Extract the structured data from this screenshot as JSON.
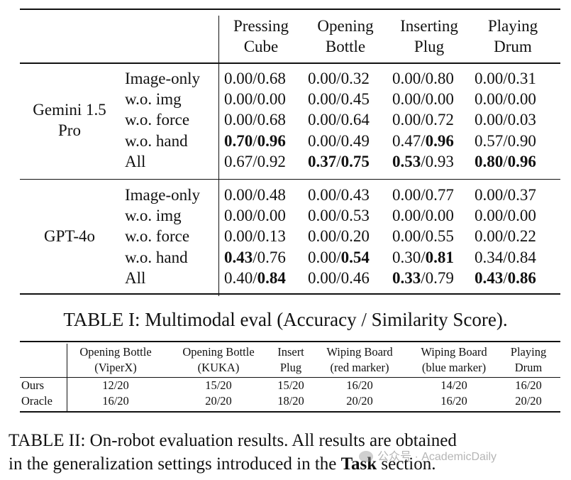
{
  "table1": {
    "headers": [
      {
        "line1": "Pressing",
        "line2": "Cube"
      },
      {
        "line1": "Opening",
        "line2": "Bottle"
      },
      {
        "line1": "Inserting",
        "line2": "Plug"
      },
      {
        "line1": "Playing",
        "line2": "Drum"
      }
    ],
    "groups": [
      {
        "model_line1": "Gemini 1.5",
        "model_line2": "Pro",
        "rows": [
          {
            "variant": "Image-only",
            "cells": [
              {
                "acc": "0.00",
                "sim": "0.68",
                "acc_bold": false,
                "sim_bold": false
              },
              {
                "acc": "0.00",
                "sim": "0.32",
                "acc_bold": false,
                "sim_bold": false
              },
              {
                "acc": "0.00",
                "sim": "0.80",
                "acc_bold": false,
                "sim_bold": false
              },
              {
                "acc": "0.00",
                "sim": "0.31",
                "acc_bold": false,
                "sim_bold": false
              }
            ]
          },
          {
            "variant": "w.o. img",
            "cells": [
              {
                "acc": "0.00",
                "sim": "0.00",
                "acc_bold": false,
                "sim_bold": false
              },
              {
                "acc": "0.00",
                "sim": "0.45",
                "acc_bold": false,
                "sim_bold": false
              },
              {
                "acc": "0.00",
                "sim": "0.00",
                "acc_bold": false,
                "sim_bold": false
              },
              {
                "acc": "0.00",
                "sim": "0.00",
                "acc_bold": false,
                "sim_bold": false
              }
            ]
          },
          {
            "variant": "w.o. force",
            "cells": [
              {
                "acc": "0.00",
                "sim": "0.68",
                "acc_bold": false,
                "sim_bold": false
              },
              {
                "acc": "0.00",
                "sim": "0.64",
                "acc_bold": false,
                "sim_bold": false
              },
              {
                "acc": "0.00",
                "sim": "0.72",
                "acc_bold": false,
                "sim_bold": false
              },
              {
                "acc": "0.00",
                "sim": "0.03",
                "acc_bold": false,
                "sim_bold": false
              }
            ]
          },
          {
            "variant": "w.o. hand",
            "cells": [
              {
                "acc": "0.70",
                "sim": "0.96",
                "acc_bold": true,
                "sim_bold": true
              },
              {
                "acc": "0.00",
                "sim": "0.49",
                "acc_bold": false,
                "sim_bold": false
              },
              {
                "acc": "0.47",
                "sim": "0.96",
                "acc_bold": false,
                "sim_bold": true
              },
              {
                "acc": "0.57",
                "sim": "0.90",
                "acc_bold": false,
                "sim_bold": false
              }
            ]
          },
          {
            "variant": "All",
            "cells": [
              {
                "acc": "0.67",
                "sim": "0.92",
                "acc_bold": false,
                "sim_bold": false
              },
              {
                "acc": "0.37",
                "sim": "0.75",
                "acc_bold": true,
                "sim_bold": true
              },
              {
                "acc": "0.53",
                "sim": "0.93",
                "acc_bold": true,
                "sim_bold": false
              },
              {
                "acc": "0.80",
                "sim": "0.96",
                "acc_bold": true,
                "sim_bold": true
              }
            ]
          }
        ]
      },
      {
        "model_line1": "GPT-4o",
        "model_line2": "",
        "rows": [
          {
            "variant": "Image-only",
            "cells": [
              {
                "acc": "0.00",
                "sim": "0.48",
                "acc_bold": false,
                "sim_bold": false
              },
              {
                "acc": "0.00",
                "sim": "0.43",
                "acc_bold": false,
                "sim_bold": false
              },
              {
                "acc": "0.00",
                "sim": "0.77",
                "acc_bold": false,
                "sim_bold": false
              },
              {
                "acc": "0.00",
                "sim": "0.37",
                "acc_bold": false,
                "sim_bold": false
              }
            ]
          },
          {
            "variant": "w.o. img",
            "cells": [
              {
                "acc": "0.00",
                "sim": "0.00",
                "acc_bold": false,
                "sim_bold": false
              },
              {
                "acc": "0.00",
                "sim": "0.53",
                "acc_bold": false,
                "sim_bold": false
              },
              {
                "acc": "0.00",
                "sim": "0.00",
                "acc_bold": false,
                "sim_bold": false
              },
              {
                "acc": "0.00",
                "sim": "0.00",
                "acc_bold": false,
                "sim_bold": false
              }
            ]
          },
          {
            "variant": "w.o. force",
            "cells": [
              {
                "acc": "0.00",
                "sim": "0.13",
                "acc_bold": false,
                "sim_bold": false
              },
              {
                "acc": "0.00",
                "sim": "0.20",
                "acc_bold": false,
                "sim_bold": false
              },
              {
                "acc": "0.00",
                "sim": "0.55",
                "acc_bold": false,
                "sim_bold": false
              },
              {
                "acc": "0.00",
                "sim": "0.22",
                "acc_bold": false,
                "sim_bold": false
              }
            ]
          },
          {
            "variant": "w.o. hand",
            "cells": [
              {
                "acc": "0.43",
                "sim": "0.76",
                "acc_bold": true,
                "sim_bold": false
              },
              {
                "acc": "0.00",
                "sim": "0.54",
                "acc_bold": false,
                "sim_bold": true
              },
              {
                "acc": "0.30",
                "sim": "0.81",
                "acc_bold": false,
                "sim_bold": true
              },
              {
                "acc": "0.34",
                "sim": "0.84",
                "acc_bold": false,
                "sim_bold": false
              }
            ]
          },
          {
            "variant": "All",
            "cells": [
              {
                "acc": "0.40",
                "sim": "0.84",
                "acc_bold": false,
                "sim_bold": true
              },
              {
                "acc": "0.00",
                "sim": "0.46",
                "acc_bold": false,
                "sim_bold": false
              },
              {
                "acc": "0.33",
                "sim": "0.79",
                "acc_bold": true,
                "sim_bold": false
              },
              {
                "acc": "0.43",
                "sim": "0.86",
                "acc_bold": true,
                "sim_bold": true
              }
            ]
          }
        ]
      }
    ],
    "caption": "TABLE I: Multimodal eval (Accuracy / Similarity Score)."
  },
  "table2": {
    "headers": [
      {
        "line1": "Opening Bottle",
        "line2": "(ViperX)"
      },
      {
        "line1": "Opening Bottle",
        "line2": "(KUKA)"
      },
      {
        "line1": "Insert",
        "line2": "Plug"
      },
      {
        "line1": "Wiping Board",
        "line2": "(red marker)"
      },
      {
        "line1": "Wiping Board",
        "line2": "(blue marker)"
      },
      {
        "line1": "Playing",
        "line2": "Drum"
      }
    ],
    "rows": [
      {
        "label": "Ours",
        "values": [
          "12/20",
          "15/20",
          "15/20",
          "16/20",
          "14/20",
          "16/20"
        ]
      },
      {
        "label": "Oracle",
        "values": [
          "16/20",
          "20/20",
          "18/20",
          "20/20",
          "16/20",
          "20/20"
        ]
      }
    ],
    "caption_line1": "TABLE II: On-robot evaluation results. All results are obtained",
    "caption_line2_pre": "in the generalization settings introduced in the ",
    "caption_line2_bold": "Task",
    "caption_line2_post": " section."
  },
  "watermark": {
    "text": "公众号 · AcademicDaily",
    "icon": "wechat-icon"
  }
}
